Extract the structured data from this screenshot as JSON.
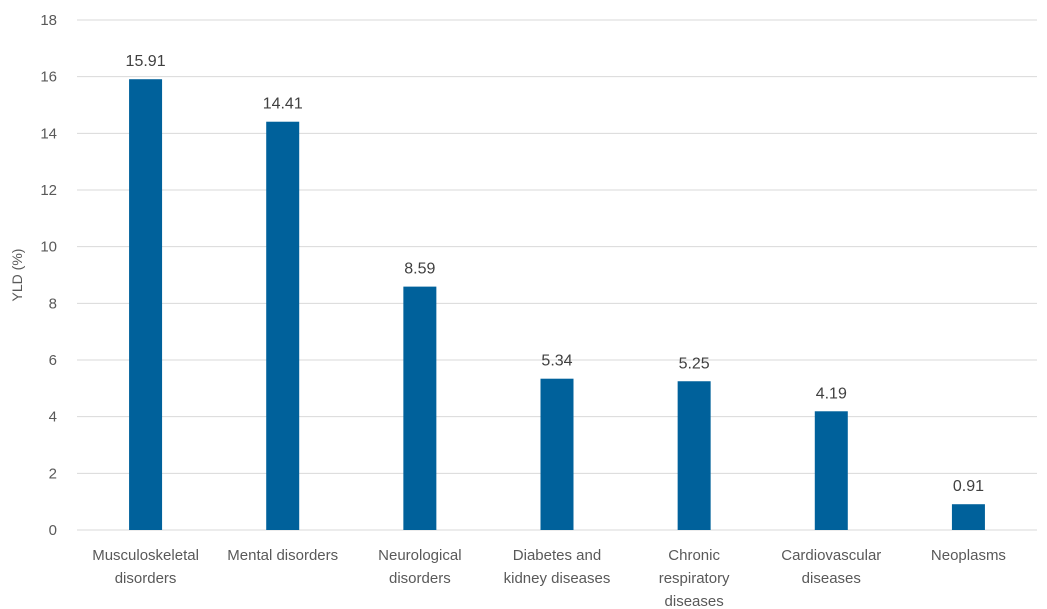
{
  "chart_data": {
    "type": "bar",
    "title": "",
    "xlabel": "",
    "ylabel": "YLD (%)",
    "ylim": [
      0,
      18
    ],
    "ytick_step": 2,
    "grid": true,
    "bar_color": "#00619b",
    "categories": [
      [
        "Musculoskeletal",
        "disorders"
      ],
      [
        "Mental disorders"
      ],
      [
        "Neurological",
        "disorders"
      ],
      [
        "Diabetes and",
        "kidney diseases"
      ],
      [
        "Chronic",
        "respiratory",
        "diseases"
      ],
      [
        "Cardiovascular",
        "diseases"
      ],
      [
        "Neoplasms"
      ]
    ],
    "values": [
      15.91,
      14.41,
      8.59,
      5.34,
      5.25,
      4.19,
      0.91
    ],
    "data_labels": [
      "15.91",
      "14.41",
      "8.59",
      "5.34",
      "5.25",
      "4.19",
      "0.91"
    ]
  }
}
